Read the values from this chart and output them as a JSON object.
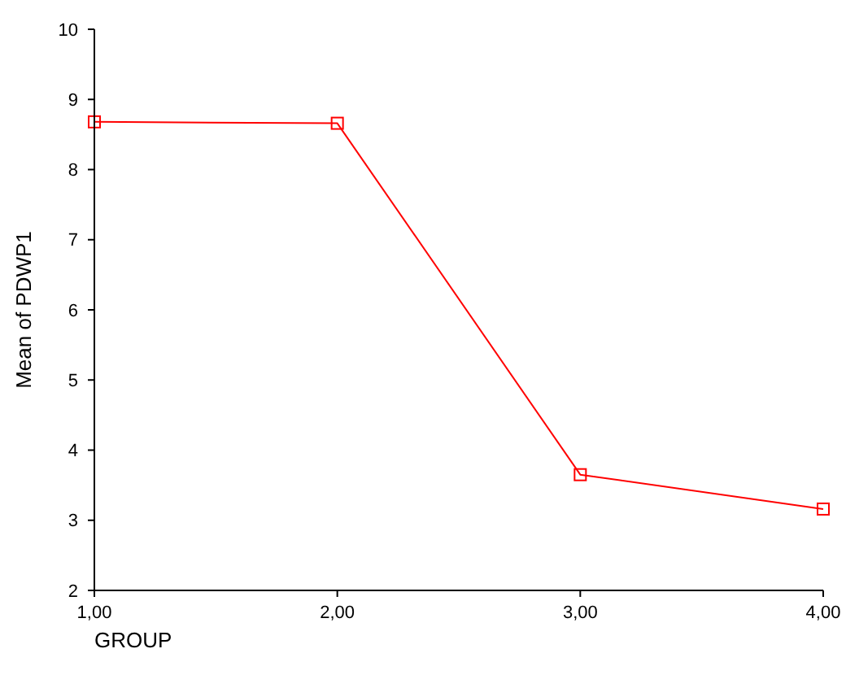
{
  "chart_data": {
    "type": "line",
    "xlabel": "GROUP",
    "ylabel": "Mean of PDWP1",
    "x": [
      1,
      2,
      3,
      4
    ],
    "series": [
      {
        "color": "#ff0000",
        "values": [
          8.68,
          8.66,
          3.65,
          3.16
        ]
      }
    ],
    "xlim": [
      1,
      4
    ],
    "xticks": [
      {
        "value": 1,
        "label": "1,00"
      },
      {
        "value": 2,
        "label": "2,00"
      },
      {
        "value": 3,
        "label": "3,00"
      },
      {
        "value": 4,
        "label": "4,00"
      }
    ],
    "ylim": [
      2,
      10
    ],
    "yticks": [
      2,
      3,
      4,
      5,
      6,
      7,
      8,
      9,
      10
    ],
    "marker": "square",
    "line_style": "solid"
  }
}
